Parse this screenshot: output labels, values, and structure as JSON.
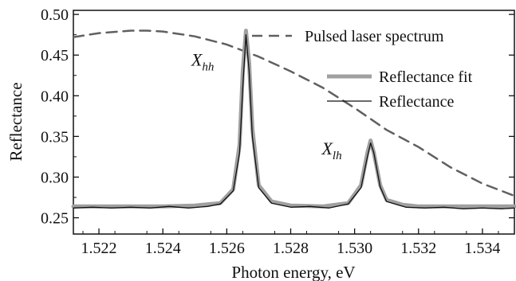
{
  "chart_data": {
    "type": "line",
    "xlabel": "Photon energy, eV",
    "ylabel": "Reflectance",
    "xlim": [
      1.5212,
      1.535
    ],
    "ylim": [
      0.23,
      0.505
    ],
    "xticks": [
      1.522,
      1.524,
      1.526,
      1.528,
      1.53,
      1.532,
      1.534
    ],
    "xtick_labels": [
      "1.522",
      "1.524",
      "1.526",
      "1.528",
      "1.530",
      "1.532",
      "1.534"
    ],
    "yticks": [
      0.25,
      0.3,
      0.35,
      0.4,
      0.45,
      0.5
    ],
    "ytick_labels": [
      "0.25",
      "0.30",
      "0.35",
      "0.40",
      "0.45",
      "0.50"
    ],
    "grid": false,
    "legend_position": "top-right",
    "series": [
      {
        "name": "Pulsed laser spectrum",
        "style": "dashed",
        "color": "#606060",
        "x": [
          1.5212,
          1.522,
          1.523,
          1.5235,
          1.524,
          1.525,
          1.526,
          1.527,
          1.528,
          1.529,
          1.53,
          1.531,
          1.532,
          1.533,
          1.534,
          1.535
        ],
        "y": [
          0.472,
          0.477,
          0.48,
          0.48,
          0.479,
          0.473,
          0.463,
          0.448,
          0.43,
          0.41,
          0.385,
          0.358,
          0.337,
          0.312,
          0.292,
          0.277
        ]
      },
      {
        "name": "Reflectance fit",
        "style": "solid",
        "color": "#a0a0a0",
        "width": "thick",
        "x": [
          1.5212,
          1.522,
          1.523,
          1.524,
          1.525,
          1.5258,
          1.5262,
          1.5264,
          1.5265,
          1.5266,
          1.5267,
          1.5268,
          1.527,
          1.5274,
          1.528,
          1.529,
          1.5298,
          1.5302,
          1.5304,
          1.5305,
          1.5306,
          1.5308,
          1.531,
          1.5315,
          1.532,
          1.533,
          1.534,
          1.535
        ],
        "y": [
          0.264,
          0.264,
          0.264,
          0.264,
          0.265,
          0.268,
          0.285,
          0.34,
          0.43,
          0.48,
          0.44,
          0.36,
          0.29,
          0.27,
          0.265,
          0.264,
          0.268,
          0.29,
          0.33,
          0.345,
          0.33,
          0.29,
          0.272,
          0.266,
          0.264,
          0.264,
          0.264,
          0.264
        ]
      },
      {
        "name": "Reflectance",
        "style": "solid",
        "color": "#111111",
        "width": "thin",
        "x": [
          1.5212,
          1.5218,
          1.5224,
          1.523,
          1.5236,
          1.5242,
          1.5248,
          1.5254,
          1.5258,
          1.5262,
          1.5264,
          1.5265,
          1.5266,
          1.5267,
          1.5268,
          1.527,
          1.5274,
          1.528,
          1.5286,
          1.5292,
          1.5298,
          1.5302,
          1.5304,
          1.5305,
          1.5306,
          1.5308,
          1.531,
          1.5316,
          1.5322,
          1.5328,
          1.5334,
          1.534,
          1.5346,
          1.535
        ],
        "y": [
          0.262,
          0.263,
          0.262,
          0.263,
          0.262,
          0.264,
          0.262,
          0.264,
          0.267,
          0.283,
          0.33,
          0.41,
          0.475,
          0.43,
          0.35,
          0.287,
          0.268,
          0.263,
          0.264,
          0.262,
          0.267,
          0.287,
          0.325,
          0.342,
          0.33,
          0.288,
          0.27,
          0.263,
          0.262,
          0.263,
          0.261,
          0.262,
          0.261,
          0.262
        ]
      }
    ],
    "annotations": [
      {
        "main": "X",
        "sub": "hh",
        "x": 1.5256,
        "y": 0.437
      },
      {
        "main": "X",
        "sub": "lh",
        "x": 1.5296,
        "y": 0.328
      }
    ]
  }
}
